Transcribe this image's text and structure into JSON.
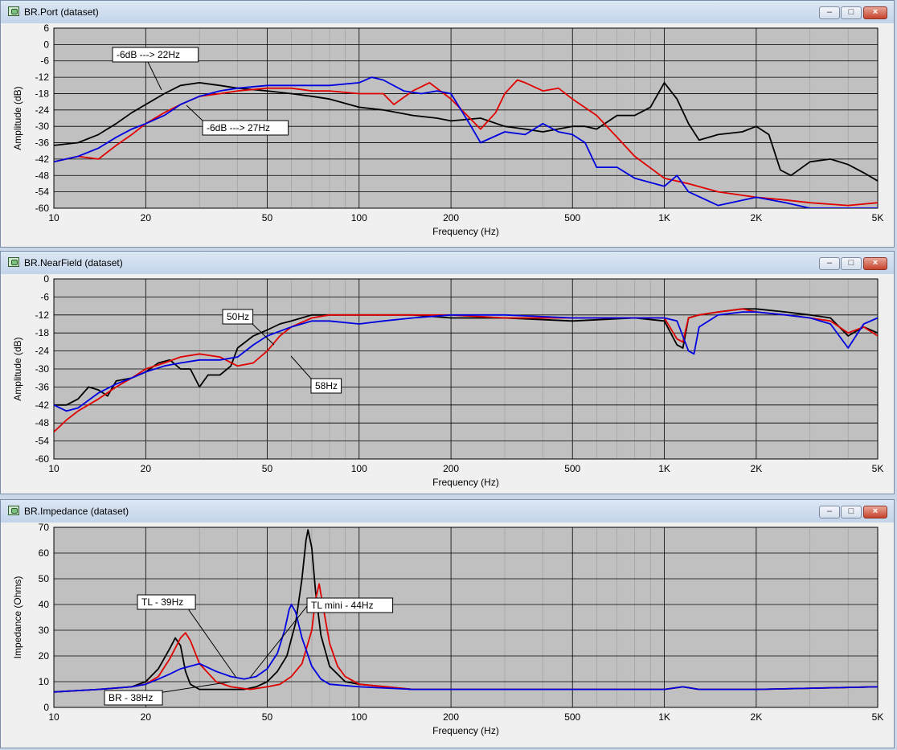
{
  "windows": [
    {
      "title": "BR.Port (dataset)"
    },
    {
      "title": "BR.NearField (dataset)"
    },
    {
      "title": "BR.Impedance (dataset)"
    }
  ],
  "window_buttons": {
    "minimize": "–",
    "maximize": "□",
    "close": "×"
  },
  "colors": {
    "black": "#000000",
    "red": "#e00000",
    "blue": "#0000e0",
    "plot_bg": "#c0c0c0",
    "grid": "#000000"
  },
  "chart_data": [
    {
      "type": "line",
      "xlabel": "Frequency (Hz)",
      "ylabel": "Amplitude (dB)",
      "x_scale": "log",
      "xlim": [
        10,
        5000
      ],
      "ylim": [
        -60,
        6
      ],
      "xticks": [
        10,
        20,
        50,
        100,
        200,
        500,
        1000,
        2000,
        5000
      ],
      "xtick_labels": [
        "10",
        "20",
        "50",
        "100",
        "200",
        "500",
        "1K",
        "2K",
        "5K"
      ],
      "yticks": [
        6,
        0,
        -6,
        -12,
        -18,
        -24,
        -30,
        -36,
        -42,
        -48,
        -54,
        -60
      ],
      "ytick_labels": [
        "6",
        "0",
        "-6",
        "-12",
        "-18",
        "-24",
        "-30",
        "-36",
        "-42",
        "-48",
        "-54",
        "-60"
      ],
      "grid": true,
      "series": [
        {
          "color": "black",
          "x": [
            10,
            12,
            14,
            16,
            18,
            20,
            23,
            26,
            30,
            35,
            40,
            50,
            60,
            70,
            80,
            100,
            120,
            150,
            180,
            200,
            250,
            300,
            350,
            400,
            500,
            550,
            600,
            700,
            800,
            900,
            1000,
            1100,
            1200,
            1300,
            1500,
            1800,
            2000,
            2200,
            2400,
            2600,
            3000,
            3500,
            4000,
            4500,
            5000
          ],
          "y": [
            -37,
            -36,
            -33,
            -29,
            -25,
            -22,
            -18,
            -15,
            -14,
            -15,
            -16,
            -17,
            -18,
            -19,
            -20,
            -23,
            -24,
            -26,
            -27,
            -28,
            -27,
            -30,
            -31,
            -32,
            -30,
            -30,
            -31,
            -26,
            -26,
            -23,
            -14,
            -20,
            -29,
            -35,
            -33,
            -32,
            -30,
            -33,
            -46,
            -48,
            -43,
            -42,
            -44,
            -47,
            -50
          ]
        },
        {
          "color": "red",
          "x": [
            10,
            12,
            14,
            16,
            18,
            20,
            23,
            26,
            30,
            35,
            40,
            50,
            60,
            70,
            80,
            100,
            120,
            130,
            150,
            170,
            200,
            250,
            280,
            300,
            330,
            350,
            400,
            450,
            500,
            600,
            700,
            800,
            1000,
            1200,
            1500,
            2000,
            2500,
            3000,
            4000,
            5000
          ],
          "y": [
            -43,
            -41,
            -42,
            -37,
            -33,
            -29,
            -25,
            -22,
            -19,
            -18,
            -17,
            -16,
            -16,
            -17,
            -17,
            -18,
            -18,
            -22,
            -17,
            -14,
            -20,
            -31,
            -25,
            -18,
            -13,
            -14,
            -17,
            -16,
            -20,
            -26,
            -34,
            -41,
            -49,
            -51,
            -54,
            -56,
            -57,
            -58,
            -59,
            -58
          ]
        },
        {
          "color": "blue",
          "x": [
            10,
            12,
            14,
            16,
            18,
            20,
            23,
            26,
            30,
            35,
            40,
            50,
            60,
            70,
            80,
            100,
            110,
            120,
            140,
            160,
            180,
            200,
            230,
            250,
            300,
            350,
            400,
            450,
            500,
            550,
            600,
            700,
            800,
            1000,
            1100,
            1200,
            1500,
            2000,
            2500,
            3000,
            4000,
            5000
          ],
          "y": [
            -43,
            -41,
            -38,
            -34,
            -31,
            -29,
            -26,
            -22,
            -19,
            -17,
            -16,
            -15,
            -15,
            -15,
            -15,
            -14,
            -12,
            -13,
            -17,
            -18,
            -17,
            -18,
            -29,
            -36,
            -32,
            -33,
            -29,
            -32,
            -33,
            -36,
            -45,
            -45,
            -49,
            -52,
            -48,
            -54,
            -59,
            -56,
            -58,
            -60,
            -60,
            -60
          ]
        }
      ],
      "annotations": [
        {
          "text": "-6dB ---> 22Hz"
        },
        {
          "text": "-6dB ---> 27Hz"
        }
      ]
    },
    {
      "type": "line",
      "xlabel": "Frequency (Hz)",
      "ylabel": "Amplitude (dB)",
      "x_scale": "log",
      "xlim": [
        10,
        5000
      ],
      "ylim": [
        -60,
        0
      ],
      "xticks": [
        10,
        20,
        50,
        100,
        200,
        500,
        1000,
        2000,
        5000
      ],
      "xtick_labels": [
        "10",
        "20",
        "50",
        "100",
        "200",
        "500",
        "1K",
        "2K",
        "5K"
      ],
      "yticks": [
        0,
        -6,
        -12,
        -18,
        -24,
        -30,
        -36,
        -42,
        -48,
        -54,
        -60
      ],
      "ytick_labels": [
        "0",
        "-6",
        "-12",
        "-18",
        "-24",
        "-30",
        "-36",
        "-42",
        "-48",
        "-54",
        "-60"
      ],
      "grid": true,
      "series": [
        {
          "color": "black",
          "x": [
            10,
            11,
            12,
            13,
            14,
            15,
            16,
            18,
            20,
            22,
            24,
            26,
            28,
            30,
            32,
            35,
            38,
            40,
            45,
            50,
            55,
            60,
            70,
            80,
            100,
            150,
            200,
            300,
            500,
            800,
            1000,
            1100,
            1150,
            1200,
            1300,
            1500,
            1800,
            2000,
            2500,
            3000,
            3500,
            4000,
            4500,
            5000
          ],
          "y": [
            -42,
            -42,
            -40,
            -36,
            -37,
            -39,
            -34,
            -33,
            -31,
            -28,
            -27,
            -30,
            -30,
            -36,
            -32,
            -32,
            -29,
            -23,
            -19,
            -17,
            -15,
            -14,
            -12,
            -12,
            -12,
            -12,
            -13,
            -13,
            -14,
            -13,
            -14,
            -22,
            -23,
            -13,
            -12,
            -11,
            -10,
            -10,
            -11,
            -12,
            -13,
            -19,
            -16,
            -18
          ]
        },
        {
          "color": "red",
          "x": [
            10,
            11,
            12,
            14,
            16,
            18,
            20,
            23,
            26,
            30,
            35,
            40,
            45,
            50,
            55,
            60,
            70,
            80,
            100,
            150,
            200,
            300,
            500,
            800,
            1000,
            1100,
            1150,
            1200,
            1300,
            1500,
            1800,
            2000,
            2500,
            3000,
            3500,
            4000,
            4500,
            5000
          ],
          "y": [
            -51,
            -47,
            -44,
            -40,
            -36,
            -33,
            -30,
            -28,
            -26,
            -25,
            -26,
            -29,
            -28,
            -24,
            -19,
            -16,
            -13,
            -12,
            -12,
            -12,
            -12,
            -13,
            -13,
            -13,
            -13,
            -20,
            -21,
            -13,
            -12,
            -11,
            -10,
            -11,
            -12,
            -13,
            -14,
            -18,
            -16,
            -19
          ]
        },
        {
          "color": "blue",
          "x": [
            10,
            11,
            12,
            14,
            16,
            18,
            20,
            23,
            26,
            30,
            35,
            40,
            45,
            50,
            60,
            70,
            80,
            100,
            120,
            150,
            200,
            300,
            500,
            800,
            1000,
            1100,
            1200,
            1250,
            1300,
            1500,
            1800,
            2000,
            2500,
            3000,
            3500,
            4000,
            4500,
            5000
          ],
          "y": [
            -42,
            -44,
            -43,
            -38,
            -35,
            -33,
            -31,
            -29,
            -28,
            -27,
            -27,
            -26,
            -22,
            -19,
            -16,
            -14,
            -14,
            -15,
            -14,
            -13,
            -12,
            -12,
            -13,
            -13,
            -13,
            -14,
            -24,
            -25,
            -16,
            -12,
            -11,
            -11,
            -12,
            -13,
            -15,
            -23,
            -15,
            -13
          ]
        }
      ],
      "annotations": [
        {
          "text": "50Hz"
        },
        {
          "text": "58Hz"
        }
      ]
    },
    {
      "type": "line",
      "xlabel": "Frequency (Hz)",
      "ylabel": "Impedance (Ohms)",
      "x_scale": "log",
      "xlim": [
        10,
        5000
      ],
      "ylim": [
        0,
        70
      ],
      "xticks": [
        10,
        20,
        50,
        100,
        200,
        500,
        1000,
        2000,
        5000
      ],
      "xtick_labels": [
        "10",
        "20",
        "50",
        "100",
        "200",
        "500",
        "1K",
        "2K",
        "5K"
      ],
      "yticks": [
        70,
        60,
        50,
        40,
        30,
        20,
        10,
        0
      ],
      "ytick_labels": [
        "70",
        "60",
        "50",
        "40",
        "30",
        "20",
        "10",
        "0"
      ],
      "grid": true,
      "series": [
        {
          "color": "black",
          "x": [
            10,
            14,
            18,
            20,
            22,
            24,
            25,
            26,
            27,
            28,
            30,
            34,
            38,
            42,
            46,
            50,
            54,
            58,
            62,
            65,
            67,
            68,
            70,
            72,
            75,
            80,
            90,
            100,
            150,
            200,
            300,
            500,
            1000,
            1150,
            1300,
            2000,
            5000
          ],
          "y": [
            6,
            7,
            8,
            10,
            15,
            23,
            27,
            24,
            14,
            9,
            7,
            7,
            7,
            7,
            8,
            10,
            14,
            20,
            33,
            50,
            65,
            69,
            62,
            45,
            28,
            16,
            10,
            9,
            7,
            7,
            7,
            7,
            7,
            8,
            7,
            7,
            8
          ]
        },
        {
          "color": "red",
          "x": [
            10,
            14,
            18,
            20,
            22,
            24,
            26,
            27,
            28,
            30,
            34,
            38,
            44,
            50,
            55,
            60,
            65,
            70,
            72,
            74,
            76,
            80,
            85,
            90,
            100,
            150,
            200,
            300,
            500,
            1000,
            1150,
            1300,
            2000,
            5000
          ],
          "y": [
            6,
            7,
            8,
            9,
            12,
            19,
            27,
            29,
            26,
            17,
            10,
            8,
            7,
            8,
            9,
            12,
            17,
            30,
            42,
            48,
            40,
            25,
            16,
            12,
            9,
            7,
            7,
            7,
            7,
            7,
            8,
            7,
            7,
            8
          ]
        },
        {
          "color": "blue",
          "x": [
            10,
            14,
            18,
            20,
            22,
            24,
            26,
            28,
            30,
            34,
            38,
            42,
            46,
            50,
            54,
            57,
            59,
            60,
            62,
            65,
            70,
            75,
            80,
            100,
            150,
            200,
            300,
            500,
            1000,
            1150,
            1300,
            2000,
            5000
          ],
          "y": [
            6,
            7,
            8,
            9,
            11,
            13,
            15,
            16,
            17,
            14,
            12,
            11,
            12,
            15,
            21,
            30,
            38,
            40,
            37,
            27,
            16,
            11,
            9,
            8,
            7,
            7,
            7,
            7,
            7,
            8,
            7,
            7,
            8
          ]
        }
      ],
      "annotations": [
        {
          "text": "TL - 39Hz"
        },
        {
          "text": "TL mini - 44Hz"
        },
        {
          "text": "BR - 38Hz"
        }
      ]
    }
  ]
}
